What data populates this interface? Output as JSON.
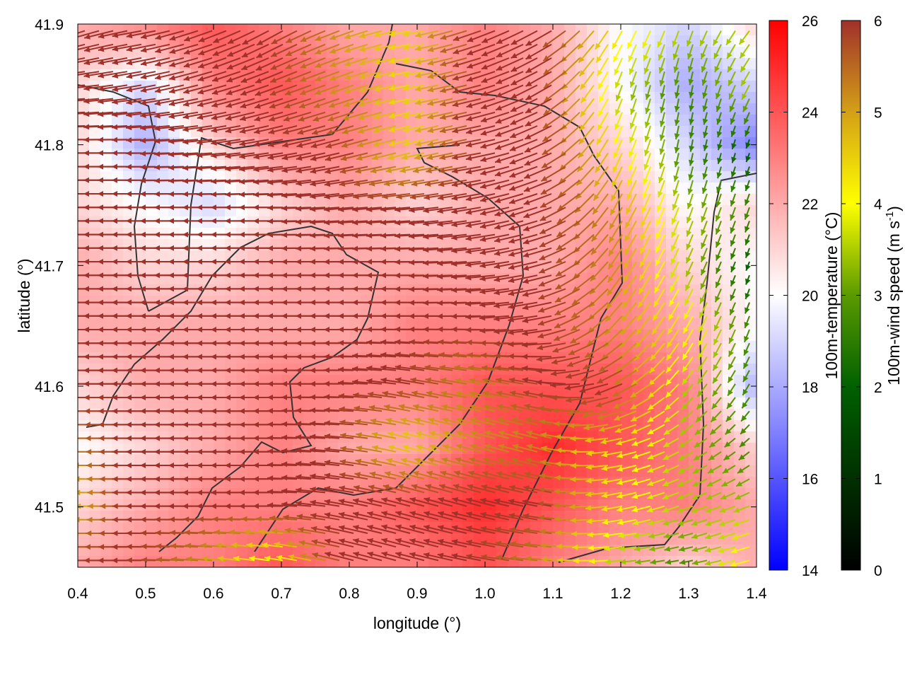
{
  "chart_data": {
    "type": "heatmap",
    "xlabel": "longitude (°)",
    "ylabel": "latitude (°)",
    "xlim": [
      0.4,
      1.4
    ],
    "ylim": [
      41.45,
      41.9
    ],
    "xticks": [
      "0.4",
      "0.5",
      "0.6",
      "0.7",
      "0.8",
      "0.9",
      "1.0",
      "1.1",
      "1.2",
      "1.3",
      "1.4"
    ],
    "yticks": [
      "41.5",
      "41.6",
      "41.7",
      "41.8",
      "41.9"
    ],
    "grid_lon": [
      0.4,
      0.5,
      0.6,
      0.7,
      0.8,
      0.9,
      1.0,
      1.1,
      1.2,
      1.3,
      1.4
    ],
    "grid_lat": [
      41.9,
      41.85,
      41.8,
      41.75,
      41.7,
      41.65,
      41.6,
      41.55,
      41.5,
      41.45
    ],
    "temperature": [
      [
        22,
        23,
        24,
        23,
        22,
        22,
        23,
        22,
        20,
        19,
        21
      ],
      [
        21,
        19,
        23,
        24,
        23,
        22,
        23,
        22,
        20,
        18,
        19
      ],
      [
        21,
        18,
        21,
        23,
        23,
        22,
        22,
        22,
        21,
        19,
        17
      ],
      [
        21,
        20,
        19,
        21,
        22,
        21,
        22,
        22,
        22,
        20,
        21
      ],
      [
        22,
        21,
        21,
        22,
        22,
        22,
        22,
        22,
        23,
        21,
        20
      ],
      [
        22,
        22,
        22,
        22,
        22,
        23,
        23,
        23,
        23,
        22,
        20
      ],
      [
        21,
        22,
        22,
        23,
        23,
        23,
        24,
        24,
        24,
        23,
        18
      ],
      [
        20,
        21,
        22,
        23,
        22,
        22,
        24,
        25,
        24,
        23,
        21
      ],
      [
        21,
        22,
        23,
        23,
        23,
        24,
        25,
        24,
        23,
        23,
        22
      ],
      [
        22,
        23,
        23,
        24,
        23,
        23,
        24,
        23,
        22,
        21,
        22
      ]
    ],
    "wind_speed": [
      [
        6,
        6,
        6,
        6,
        5,
        4,
        6,
        6,
        4,
        3,
        3
      ],
      [
        6,
        6,
        6,
        6,
        5,
        4,
        6,
        6,
        3,
        2,
        3
      ],
      [
        6,
        6,
        6,
        6,
        6,
        4,
        6,
        6,
        4,
        2,
        1
      ],
      [
        6,
        6,
        6,
        6,
        6,
        6,
        6,
        6,
        5,
        3,
        2
      ],
      [
        6,
        6,
        6,
        6,
        6,
        6,
        6,
        6,
        5,
        3,
        1
      ],
      [
        6,
        6,
        6,
        6,
        6,
        6,
        6,
        6,
        5,
        4,
        2
      ],
      [
        6,
        6,
        6,
        6,
        6,
        6,
        5,
        6,
        6,
        3,
        2
      ],
      [
        5,
        6,
        6,
        6,
        6,
        4,
        5,
        5,
        4,
        3,
        2
      ],
      [
        4,
        6,
        6,
        6,
        6,
        6,
        6,
        6,
        4,
        3,
        3
      ],
      [
        6,
        6,
        5,
        3,
        6,
        6,
        6,
        5,
        3,
        2,
        4
      ]
    ],
    "wind_direction_deg": [
      [
        200,
        190,
        200,
        210,
        200,
        190,
        200,
        210,
        240,
        250,
        230
      ],
      [
        185,
        190,
        195,
        200,
        200,
        190,
        195,
        210,
        250,
        260,
        240
      ],
      [
        180,
        180,
        185,
        190,
        195,
        195,
        190,
        205,
        245,
        260,
        250
      ],
      [
        180,
        180,
        180,
        180,
        185,
        185,
        190,
        200,
        240,
        250,
        250
      ],
      [
        180,
        180,
        180,
        180,
        180,
        180,
        185,
        195,
        235,
        245,
        250
      ],
      [
        180,
        180,
        180,
        180,
        180,
        180,
        180,
        190,
        225,
        240,
        250
      ],
      [
        180,
        180,
        180,
        180,
        180,
        170,
        170,
        170,
        200,
        230,
        240
      ],
      [
        180,
        180,
        180,
        180,
        175,
        165,
        165,
        165,
        190,
        210,
        220
      ],
      [
        180,
        180,
        180,
        180,
        170,
        165,
        165,
        170,
        190,
        200,
        200
      ],
      [
        180,
        180,
        175,
        170,
        165,
        165,
        170,
        175,
        185,
        190,
        195
      ]
    ],
    "colorbars": [
      {
        "label": "100m-temperature (°C)",
        "range": [
          14,
          26
        ],
        "ticks": [
          "14",
          "16",
          "18",
          "20",
          "22",
          "24",
          "26"
        ],
        "colors": [
          "#0000ff",
          "#ffffff",
          "#ff0000"
        ]
      },
      {
        "label_main": "100m-wind speed (m s",
        "label_sup": "-1",
        "label_end": ")",
        "range": [
          0,
          6
        ],
        "ticks": [
          "0",
          "1",
          "2",
          "3",
          "4",
          "5",
          "6"
        ],
        "colors": [
          "#000000",
          "#006000",
          "#5a9a00",
          "#ffff00",
          "#d4a017",
          "#a0302a"
        ]
      }
    ]
  }
}
